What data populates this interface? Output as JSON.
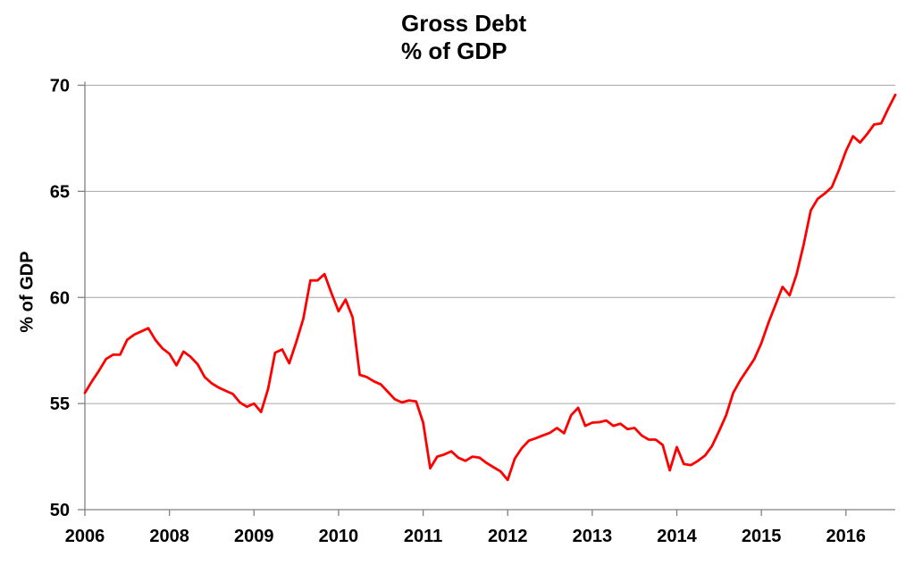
{
  "chart_data": {
    "type": "line",
    "title": "Gross Debt",
    "subtitle": "% of GDP",
    "ylabel": "% of GDP",
    "xlabel": "",
    "ylim": [
      50,
      70
    ],
    "grid": "horizontal",
    "legend": "none",
    "y_ticks": [
      {
        "value": 50,
        "label": "50"
      },
      {
        "value": 55,
        "label": "55"
      },
      {
        "value": 60,
        "label": "60"
      },
      {
        "value": 65,
        "label": "65"
      },
      {
        "value": 70,
        "label": "70"
      }
    ],
    "x_ticks": [
      {
        "at": 0,
        "label": "2006"
      },
      {
        "at": 12,
        "label": "2008"
      },
      {
        "at": 24,
        "label": "2009"
      },
      {
        "at": 36,
        "label": "2010"
      },
      {
        "at": 48,
        "label": "2011"
      },
      {
        "at": 60,
        "label": "2012"
      },
      {
        "at": 72,
        "label": "2013"
      },
      {
        "at": 84,
        "label": "2014"
      },
      {
        "at": 96,
        "label": "2015"
      },
      {
        "at": 108,
        "label": "2016"
      }
    ],
    "series": [
      {
        "name": "Gross Debt (% of GDP)",
        "color": "#FF0000",
        "x_dates": [
          "2006-Q1",
          "2006-Q2",
          "2006-Q3",
          "2006-Q4",
          "2007-Q1",
          "2007-Q2",
          "2007-Q3",
          "2007-Q4",
          "2008-01",
          "2008-02",
          "2008-03",
          "2008-04",
          "2008-05",
          "2008-06",
          "2008-07",
          "2008-08",
          "2008-09",
          "2008-10",
          "2008-11",
          "2008-12",
          "2009-01",
          "2009-02",
          "2009-03",
          "2009-04",
          "2009-05",
          "2009-06",
          "2009-07",
          "2009-08",
          "2009-09",
          "2009-10",
          "2009-11",
          "2009-12",
          "2010-01",
          "2010-02",
          "2010-03",
          "2010-04",
          "2010-05",
          "2010-06",
          "2010-07",
          "2010-08",
          "2010-09",
          "2010-10",
          "2010-11",
          "2010-12",
          "2011-01",
          "2011-02",
          "2011-03",
          "2011-04",
          "2011-05",
          "2011-06",
          "2011-07",
          "2011-08",
          "2011-09",
          "2011-10",
          "2011-11",
          "2011-12",
          "2012-01",
          "2012-02",
          "2012-03",
          "2012-04",
          "2012-05",
          "2012-06",
          "2012-07",
          "2012-08",
          "2012-09",
          "2012-10",
          "2012-11",
          "2012-12",
          "2013-01",
          "2013-02",
          "2013-03",
          "2013-04",
          "2013-05",
          "2013-06",
          "2013-07",
          "2013-08",
          "2013-09",
          "2013-10",
          "2013-11",
          "2013-12",
          "2014-01",
          "2014-02",
          "2014-03",
          "2014-04",
          "2014-05",
          "2014-06",
          "2014-07",
          "2014-08",
          "2014-09",
          "2014-10",
          "2014-11",
          "2014-12",
          "2015-01",
          "2015-02",
          "2015-03",
          "2015-04",
          "2015-05",
          "2015-06",
          "2015-07",
          "2015-08",
          "2015-09",
          "2015-10",
          "2015-11",
          "2015-12",
          "2016-01",
          "2016-02",
          "2016-03",
          "2016-04",
          "2016-05",
          "2016-06",
          "2016-07",
          "2016-08",
          "2016-09",
          "2016-10",
          "2016-11",
          "2016-12"
        ],
        "values": [
          55.5,
          56.05,
          56.55,
          57.1,
          57.3,
          57.3,
          58.0,
          58.25,
          58.4,
          58.55,
          58.0,
          57.6,
          57.35,
          56.8,
          57.45,
          57.2,
          56.85,
          56.25,
          55.95,
          55.75,
          55.6,
          55.45,
          55.05,
          54.85,
          55.0,
          54.6,
          55.7,
          57.4,
          57.55,
          56.9,
          57.9,
          59.0,
          60.8,
          60.8,
          61.1,
          60.2,
          59.35,
          59.9,
          59.05,
          56.35,
          56.25,
          56.05,
          55.9,
          55.55,
          55.2,
          55.05,
          55.15,
          55.1,
          54.1,
          51.95,
          52.5,
          52.6,
          52.75,
          52.45,
          52.3,
          52.5,
          52.45,
          52.2,
          52.0,
          51.8,
          51.4,
          52.4,
          52.9,
          53.25,
          53.37,
          53.5,
          53.62,
          53.85,
          53.6,
          54.45,
          54.8,
          53.95,
          54.1,
          54.12,
          54.2,
          53.95,
          54.05,
          53.8,
          53.85,
          53.5,
          53.3,
          53.3,
          53.05,
          51.85,
          52.95,
          52.15,
          52.1,
          52.3,
          52.55,
          53.0,
          53.7,
          54.45,
          55.5,
          56.1,
          56.6,
          57.1,
          57.85,
          58.8,
          59.65,
          60.5,
          60.1,
          61.1,
          62.5,
          64.1,
          64.65,
          64.9,
          65.2,
          66.0,
          66.9,
          67.6,
          67.3,
          67.7,
          68.15,
          68.2,
          68.9,
          69.55
        ]
      }
    ],
    "colors": {
      "line": "#FF0000",
      "gridline": "#A6A6A6",
      "axis": "#808080",
      "text": "#000000",
      "background": "#FFFFFF"
    }
  }
}
